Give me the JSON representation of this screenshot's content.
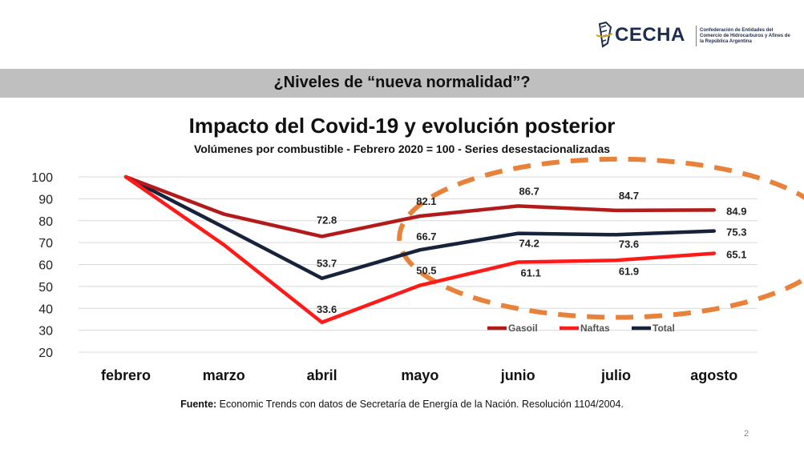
{
  "logo": {
    "name": "CECHA",
    "tagline": "Confederación de Entidades del Comercio de Hidrocarburos y Afines de la República Argentina"
  },
  "banner": {
    "text": "¿Niveles de “nueva normalidad”?"
  },
  "chart_data": {
    "type": "line",
    "title": "Impacto del Covid-19 y evolución posterior",
    "subtitle": "Volúmenes por combustible - Febrero 2020 = 100 - Series desestacionalizadas",
    "categories": [
      "febrero",
      "marzo",
      "abril",
      "mayo",
      "junio",
      "julio",
      "agosto"
    ],
    "ylim": [
      20,
      100
    ],
    "yticks": [
      20,
      30,
      40,
      50,
      60,
      70,
      80,
      90,
      100
    ],
    "grid": true,
    "legend_position": "bottom-right",
    "series": [
      {
        "name": "Gasoil",
        "color": "#b31b1b",
        "values": [
          100,
          83,
          72.8,
          82.1,
          86.7,
          84.7,
          84.9
        ],
        "labels": [
          null,
          null,
          "72.8",
          "82.1",
          "86.7",
          "84.7",
          "84.9"
        ]
      },
      {
        "name": "Naftas",
        "color": "#ff1a1a",
        "values": [
          100,
          69,
          33.6,
          50.5,
          61.1,
          61.9,
          65.1
        ],
        "labels": [
          null,
          null,
          "33.6",
          "50.5",
          "61.1",
          "61.9",
          "65.1"
        ]
      },
      {
        "name": "Total",
        "color": "#17223b",
        "values": [
          100,
          77,
          53.7,
          66.7,
          74.2,
          73.6,
          75.3
        ],
        "labels": [
          null,
          null,
          "53.7",
          "66.7",
          "74.2",
          "73.6",
          "75.3"
        ]
      }
    ],
    "annotation": {
      "shape": "dashed-ellipse",
      "color": "#e8823a",
      "covers": [
        "junio",
        "julio",
        "agosto"
      ]
    }
  },
  "source": {
    "label": "Fuente:",
    "text": " Economic Trends con datos de Secretaría de Energía de la Nación. Resolución 1104/2004."
  },
  "page_number": "2"
}
